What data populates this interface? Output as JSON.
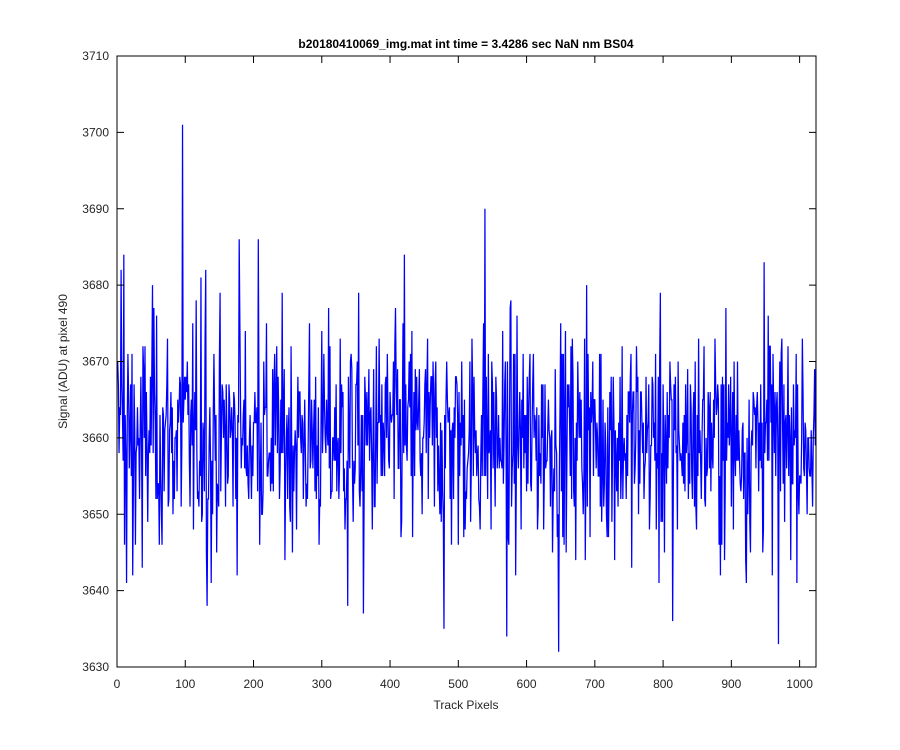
{
  "chart_data": {
    "type": "line",
    "title": "b20180410069_img.mat int time = 3.4286 sec  NaN nm BS04",
    "xlabel": "Track Pixels",
    "ylabel": "Signal (ADU) at pixel 490",
    "xlim": [
      0,
      1024
    ],
    "ylim": [
      3630,
      3710
    ],
    "xticks": [
      0,
      100,
      200,
      300,
      400,
      500,
      600,
      700,
      800,
      900,
      1000
    ],
    "yticks": [
      3630,
      3640,
      3650,
      3660,
      3670,
      3680,
      3690,
      3700,
      3710
    ],
    "grid": false,
    "legend": "none",
    "series_color": "#0000ff",
    "noise": {
      "count": 1024,
      "mean": 3660,
      "clip_min": 3641,
      "clip_max": 3679,
      "note": "dense noise-like trace around the mean with the listed spikes"
    },
    "spikes": [
      {
        "x": 5,
        "y": 3682
      },
      {
        "x": 9,
        "y": 3684
      },
      {
        "x": 13,
        "y": 3641
      },
      {
        "x": 22,
        "y": 3642
      },
      {
        "x": 36,
        "y": 3643
      },
      {
        "x": 51,
        "y": 3680
      },
      {
        "x": 95,
        "y": 3701
      },
      {
        "x": 122,
        "y": 3681
      },
      {
        "x": 129,
        "y": 3682
      },
      {
        "x": 131,
        "y": 3638
      },
      {
        "x": 137,
        "y": 3641
      },
      {
        "x": 178,
        "y": 3686
      },
      {
        "x": 206,
        "y": 3686
      },
      {
        "x": 337,
        "y": 3638
      },
      {
        "x": 360,
        "y": 3637
      },
      {
        "x": 420,
        "y": 3684
      },
      {
        "x": 478,
        "y": 3635
      },
      {
        "x": 538,
        "y": 3690
      },
      {
        "x": 570,
        "y": 3634
      },
      {
        "x": 646,
        "y": 3632
      },
      {
        "x": 687,
        "y": 3680
      },
      {
        "x": 793,
        "y": 3641
      },
      {
        "x": 813,
        "y": 3636
      },
      {
        "x": 921,
        "y": 3641
      },
      {
        "x": 947,
        "y": 3683
      },
      {
        "x": 968,
        "y": 3633
      }
    ]
  }
}
